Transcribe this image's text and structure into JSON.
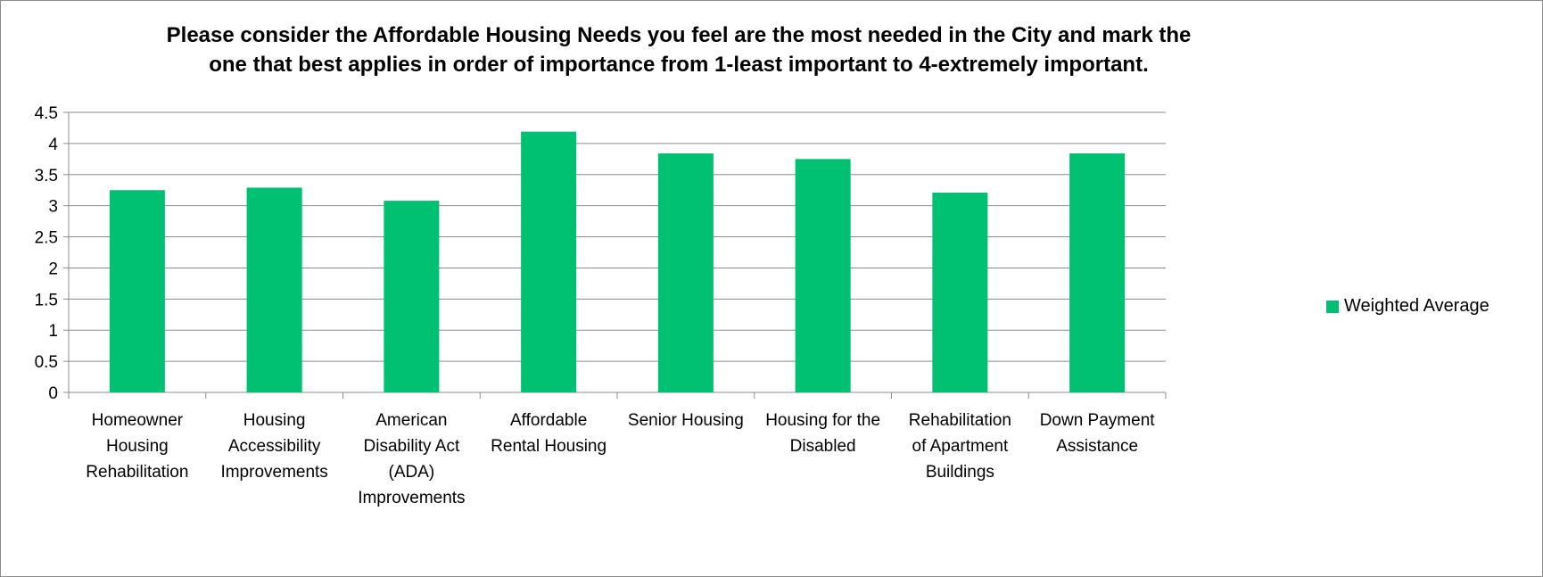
{
  "chart_data": {
    "type": "bar",
    "title": "Please consider the Affordable Housing Needs you feel are the most needed in the City and mark the\none that best applies in order of importance from 1-least important to 4-extremely important.",
    "categories": [
      "Homeowner Housing Rehabilitation",
      "Housing Accessibility Improvements",
      "American Disability Act (ADA) Improvements",
      "Affordable Rental Housing",
      "Senior Housing",
      "Housing for the Disabled",
      "Rehabilitation of Apartment Buildings",
      "Down Payment Assistance"
    ],
    "category_lines": [
      [
        "Homeowner",
        "Housing",
        "Rehabilitation"
      ],
      [
        "Housing",
        "Accessibility",
        "Improvements"
      ],
      [
        "American",
        "Disability Act",
        "(ADA)",
        "Improvements"
      ],
      [
        "Affordable",
        "Rental Housing"
      ],
      [
        "Senior Housing"
      ],
      [
        "Housing for the",
        "Disabled"
      ],
      [
        "Rehabilitation",
        "of Apartment",
        "Buildings"
      ],
      [
        "Down Payment",
        "Assistance"
      ]
    ],
    "series": [
      {
        "name": "Weighted Average",
        "color": "#00c072",
        "values": [
          3.25,
          3.29,
          3.08,
          4.19,
          3.84,
          3.75,
          3.21,
          3.84
        ]
      }
    ],
    "ylim": [
      0,
      4.5
    ],
    "yticks": [
      "0",
      "0.5",
      "1",
      "1.5",
      "2",
      "2.5",
      "3",
      "3.5",
      "4",
      "4.5"
    ],
    "xlabel": "",
    "ylabel": "",
    "grid": true,
    "legend_position": "right"
  }
}
